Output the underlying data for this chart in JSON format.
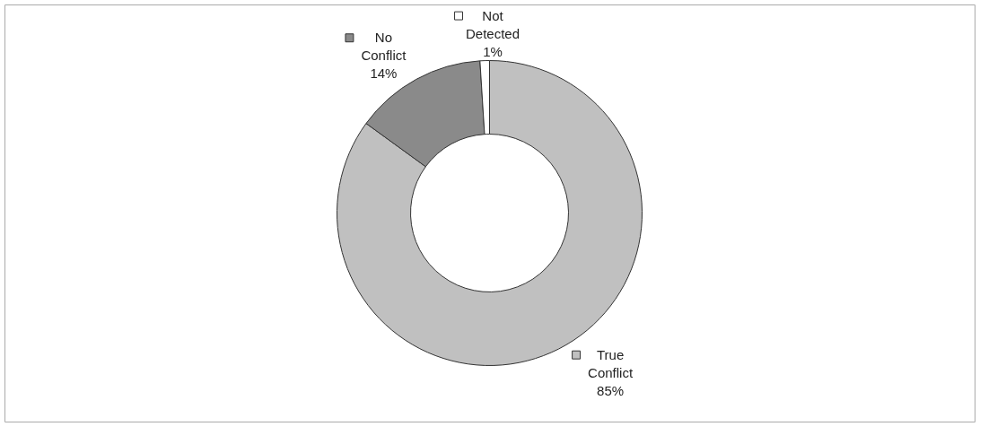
{
  "chart_data": {
    "type": "donut",
    "categories": [
      "True Conflict",
      "No Conflict",
      "Not Detected"
    ],
    "values": [
      85,
      14,
      1
    ],
    "colors": [
      "#c0c0c0",
      "#8a8a8a",
      "#ffffff"
    ],
    "value_labels": [
      "85%",
      "14%",
      "1%"
    ],
    "legend": "top"
  }
}
